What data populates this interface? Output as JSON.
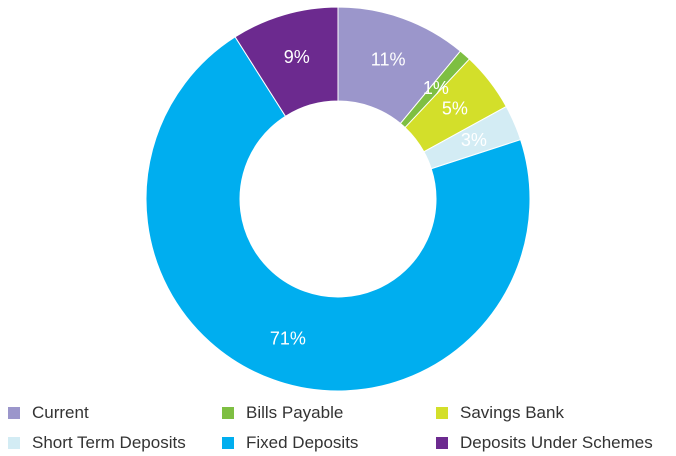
{
  "chart_data": {
    "type": "pie",
    "donut": true,
    "title": "",
    "categories": [
      "Current",
      "Bills Payable",
      "Savings Bank",
      "Short Term Deposits",
      "Fixed Deposits",
      "Deposits Under Schemes"
    ],
    "values": [
      11,
      1,
      5,
      3,
      71,
      9
    ],
    "labels": [
      "11%",
      "1%",
      "5%",
      "3%",
      "71%",
      "9%"
    ],
    "colors": [
      "#9b96cb",
      "#7ebf42",
      "#d3df2a",
      "#d3ecf4",
      "#00aeef",
      "#6c2a8f"
    ],
    "legend_position": "bottom"
  }
}
